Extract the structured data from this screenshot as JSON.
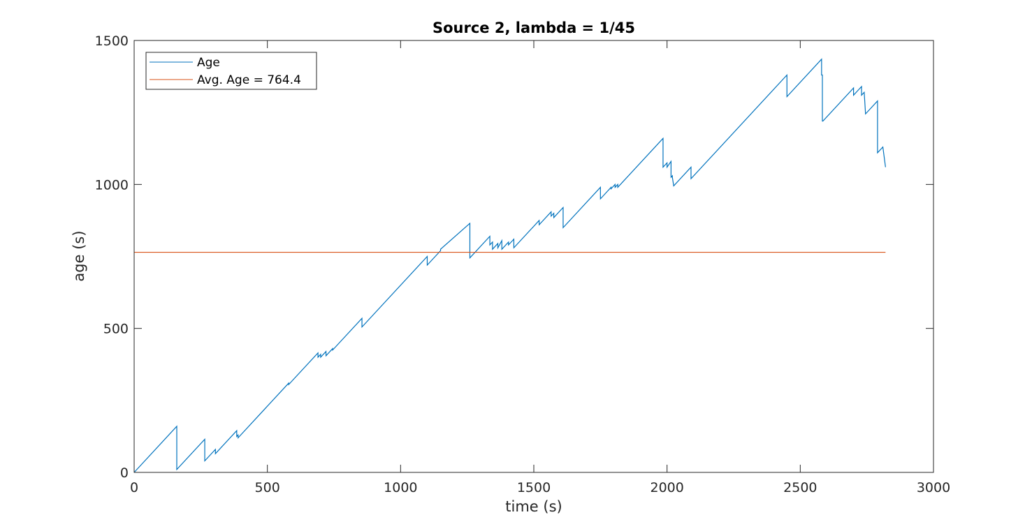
{
  "chart_data": {
    "type": "line",
    "title": "Source 2, lambda = 1/45",
    "xlabel": "time (s)",
    "ylabel": "age (s)",
    "xlim": [
      0,
      3000
    ],
    "ylim": [
      0,
      1500
    ],
    "xticks": [
      0,
      500,
      1000,
      1500,
      2000,
      2500,
      3000
    ],
    "yticks": [
      0,
      500,
      1000,
      1500
    ],
    "grid": false,
    "legend_position": "top-left",
    "series": [
      {
        "name": "Age",
        "color": "#0072BD",
        "x": [
          0,
          160,
          160,
          265,
          265,
          305,
          305,
          385,
          385,
          390,
          390,
          580,
          580,
          690,
          690,
          700,
          700,
          720,
          720,
          745,
          745,
          855,
          855,
          1100,
          1100,
          1150,
          1150,
          1260,
          1260,
          1335,
          1335,
          1345,
          1345,
          1365,
          1365,
          1380,
          1380,
          1405,
          1405,
          1425,
          1425,
          1520,
          1520,
          1565,
          1565,
          1575,
          1575,
          1610,
          1610,
          1750,
          1750,
          1775,
          1775,
          1790,
          1790,
          1805,
          1805,
          1815,
          1815,
          1985,
          1985,
          2000,
          2000,
          2015,
          2015,
          2020,
          2020,
          2025,
          2025,
          2090,
          2090,
          2450,
          2450,
          2580,
          2580,
          2583,
          2583,
          2585,
          2585,
          2700,
          2700,
          2720,
          2720,
          2730,
          2730,
          2740,
          2740,
          2745,
          2745,
          2790,
          2790,
          2810,
          2810,
          2820
        ],
        "y": [
          0,
          160,
          10,
          115,
          40,
          80,
          65,
          145,
          125,
          130,
          120,
          310,
          305,
          415,
          400,
          410,
          400,
          420,
          405,
          430,
          425,
          535,
          505,
          750,
          720,
          770,
          775,
          865,
          745,
          820,
          790,
          800,
          775,
          795,
          780,
          805,
          775,
          800,
          790,
          810,
          780,
          875,
          860,
          905,
          890,
          900,
          885,
          920,
          850,
          990,
          950,
          975,
          975,
          990,
          985,
          1000,
          990,
          1000,
          990,
          1160,
          1060,
          1075,
          1060,
          1080,
          1025,
          1030,
          1025,
          995,
          995,
          1060,
          1020,
          1380,
          1305,
          1435,
          1380,
          1380,
          1220,
          1220,
          1220,
          1335,
          1310,
          1330,
          1330,
          1340,
          1310,
          1320,
          1320,
          1245,
          1245,
          1290,
          1110,
          1130,
          1130,
          1060
        ]
      },
      {
        "name": "Avg. Age = 764.4",
        "color": "#D95319",
        "x": [
          0,
          2820
        ],
        "y": [
          764.4,
          764.4
        ]
      }
    ]
  }
}
